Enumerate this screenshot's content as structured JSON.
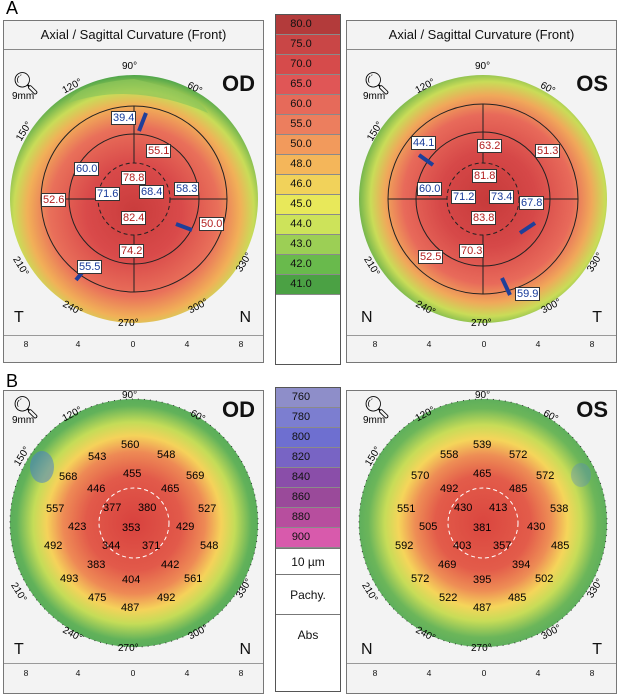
{
  "labels": {
    "a": "A",
    "b": "B"
  },
  "top_row": {
    "left_panel": {
      "title": "Axial / Sagittal Curvature (Front)",
      "eye": "OD",
      "zoom": "9mm",
      "corner_left": "T",
      "corner_right": "N",
      "scale": [
        "8",
        "4",
        "0",
        "4",
        "8"
      ],
      "degrees": {
        "d90": "90°",
        "d120": "120°",
        "d150": "150°",
        "d210": "210°",
        "d240": "240°",
        "d270": "270°",
        "d300": "300°",
        "d330": "330°",
        "d60": "60°"
      },
      "values": {
        "v394": "39.4",
        "v600": "60.0",
        "v551": "55.1",
        "v716": "71.6",
        "v788": "78.8",
        "v684": "68.4",
        "v583": "58.3",
        "v526": "52.6",
        "v824": "82.4",
        "v500": "50.0",
        "v742": "74.2",
        "v555": "55.5"
      }
    },
    "right_panel": {
      "title": "Axial / Sagittal Curvature (Front)",
      "eye": "OS",
      "zoom": "9mm",
      "corner_left": "N",
      "corner_right": "T",
      "scale": [
        "8",
        "4",
        "0",
        "4",
        "8"
      ],
      "degrees": {
        "d90": "90°",
        "d120": "120°",
        "d150": "150°",
        "d210": "210°",
        "d240": "240°",
        "d270": "270°",
        "d300": "300°",
        "d330": "330°",
        "d60": "60°"
      },
      "values": {
        "v441": "44.1",
        "v632": "63.2",
        "v513": "51.3",
        "v600": "60.0",
        "v712": "71.2",
        "v818": "81.8",
        "v734": "73.4",
        "v678": "67.8",
        "v838": "83.8",
        "v525": "52.5",
        "v703": "70.3",
        "v599": "59.9"
      }
    },
    "legend": {
      "steps": [
        "80.0",
        "75.0",
        "70.0",
        "65.0",
        "60.0",
        "55.0",
        "50.0",
        "48.0",
        "46.0",
        "45.0",
        "44.0",
        "43.0",
        "42.0",
        "41.0"
      ],
      "colors": [
        "#b33b3b",
        "#c94646",
        "#d64b4b",
        "#e05656",
        "#e66a5a",
        "#ec7e5e",
        "#f29a5c",
        "#f4b65a",
        "#f1d25a",
        "#e8e85a",
        "#cde35a",
        "#9ccf55",
        "#69ba4c",
        "#4ba144"
      ]
    }
  },
  "bottom_row": {
    "left_panel": {
      "eye": "OD",
      "zoom": "9mm",
      "corner_left": "T",
      "corner_right": "N",
      "scale": [
        "8",
        "4",
        "0",
        "4",
        "8"
      ],
      "degrees": {
        "d90": "90°",
        "d120": "120°",
        "d150": "150°",
        "d210": "210°",
        "d240": "240°",
        "d270": "270°",
        "d300": "300°",
        "d330": "330°",
        "d60": "60°"
      },
      "values": {
        "a560": "560",
        "a548": "548",
        "a543": "543",
        "a455": "455",
        "a569": "569",
        "a568": "568",
        "a446": "446",
        "a465": "465",
        "a557": "557",
        "a377": "377",
        "a380": "380",
        "a527": "527",
        "a423": "423",
        "a353": "353",
        "a429": "429",
        "a492l": "492",
        "a344": "344",
        "a371": "371",
        "a548b": "548",
        "a383": "383",
        "a442": "442",
        "a493": "493",
        "a404": "404",
        "a561": "561",
        "a475": "475",
        "a492b": "492",
        "a487": "487"
      }
    },
    "right_panel": {
      "eye": "OS",
      "zoom": "9mm",
      "corner_left": "N",
      "corner_right": "T",
      "scale": [
        "8",
        "4",
        "0",
        "4",
        "8"
      ],
      "degrees": {
        "d90": "90°",
        "d120": "120°",
        "d150": "150°",
        "d210": "210°",
        "d240": "240°",
        "d270": "270°",
        "d300": "300°",
        "d330": "330°",
        "d60": "60°"
      },
      "values": {
        "b539": "539",
        "b558": "558",
        "b572": "572",
        "b465": "465",
        "b570": "570",
        "b492": "492",
        "b485": "485",
        "b572b": "572",
        "b551": "551",
        "b430": "430",
        "b413": "413",
        "b538": "538",
        "b505": "505",
        "b381": "381",
        "b430b": "430",
        "b592": "592",
        "b403": "403",
        "b357": "357",
        "b485b": "485",
        "b469": "469",
        "b394": "394",
        "b572c": "572",
        "b395": "395",
        "b502": "502",
        "b522": "522",
        "b487": "487",
        "b485c": "485"
      }
    },
    "legend": {
      "steps": [
        "760",
        "780",
        "800",
        "820",
        "840",
        "860",
        "880",
        "900"
      ],
      "colors": [
        "#8e8ec9",
        "#7c7ed0",
        "#6e6fd0",
        "#7864c4",
        "#8a4ea9",
        "#9a4a9a",
        "#b74e9e",
        "#d85aac"
      ],
      "unit": "10 µm",
      "mode": "Pachy.",
      "abs": "Abs"
    }
  }
}
